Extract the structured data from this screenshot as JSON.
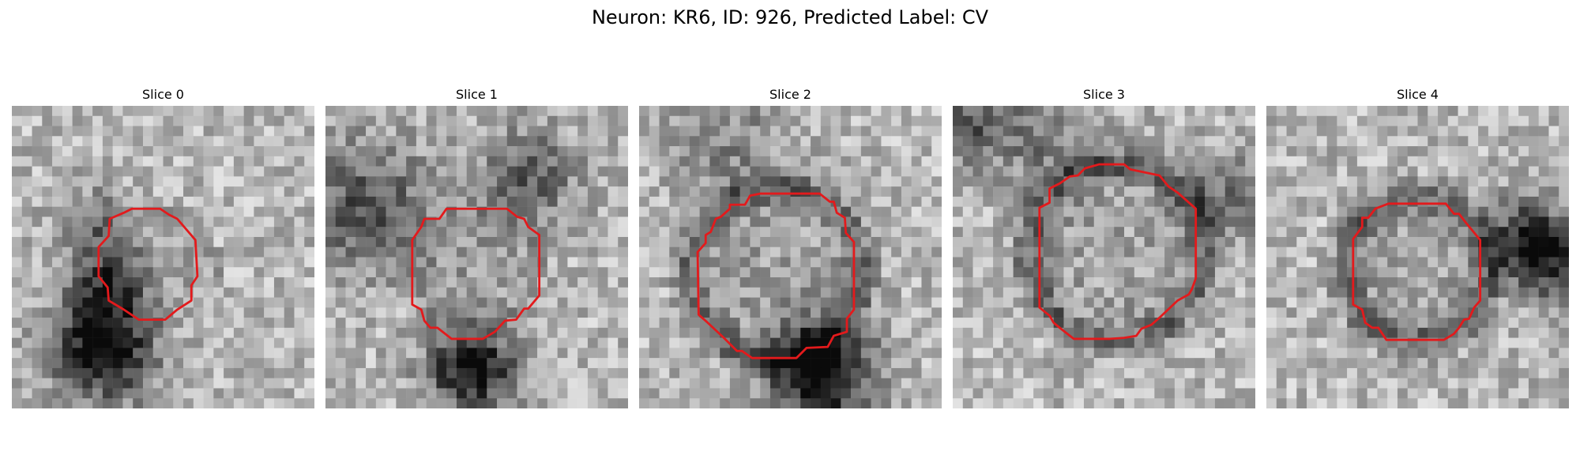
{
  "figure": {
    "title": "Neuron: KR6, ID: 926, Predicted Label: CV"
  },
  "panels": [
    {
      "title": "Slice 0",
      "seed": 11,
      "boundary_color": "#e31a1c"
    },
    {
      "title": "Slice 1",
      "seed": 23,
      "boundary_color": "#e31a1c"
    },
    {
      "title": "Slice 2",
      "seed": 37,
      "boundary_color": "#e31a1c"
    },
    {
      "title": "Slice 3",
      "seed": 41,
      "boundary_color": "#e31a1c"
    },
    {
      "title": "Slice 4",
      "seed": 59,
      "boundary_color": "#e31a1c"
    }
  ]
}
